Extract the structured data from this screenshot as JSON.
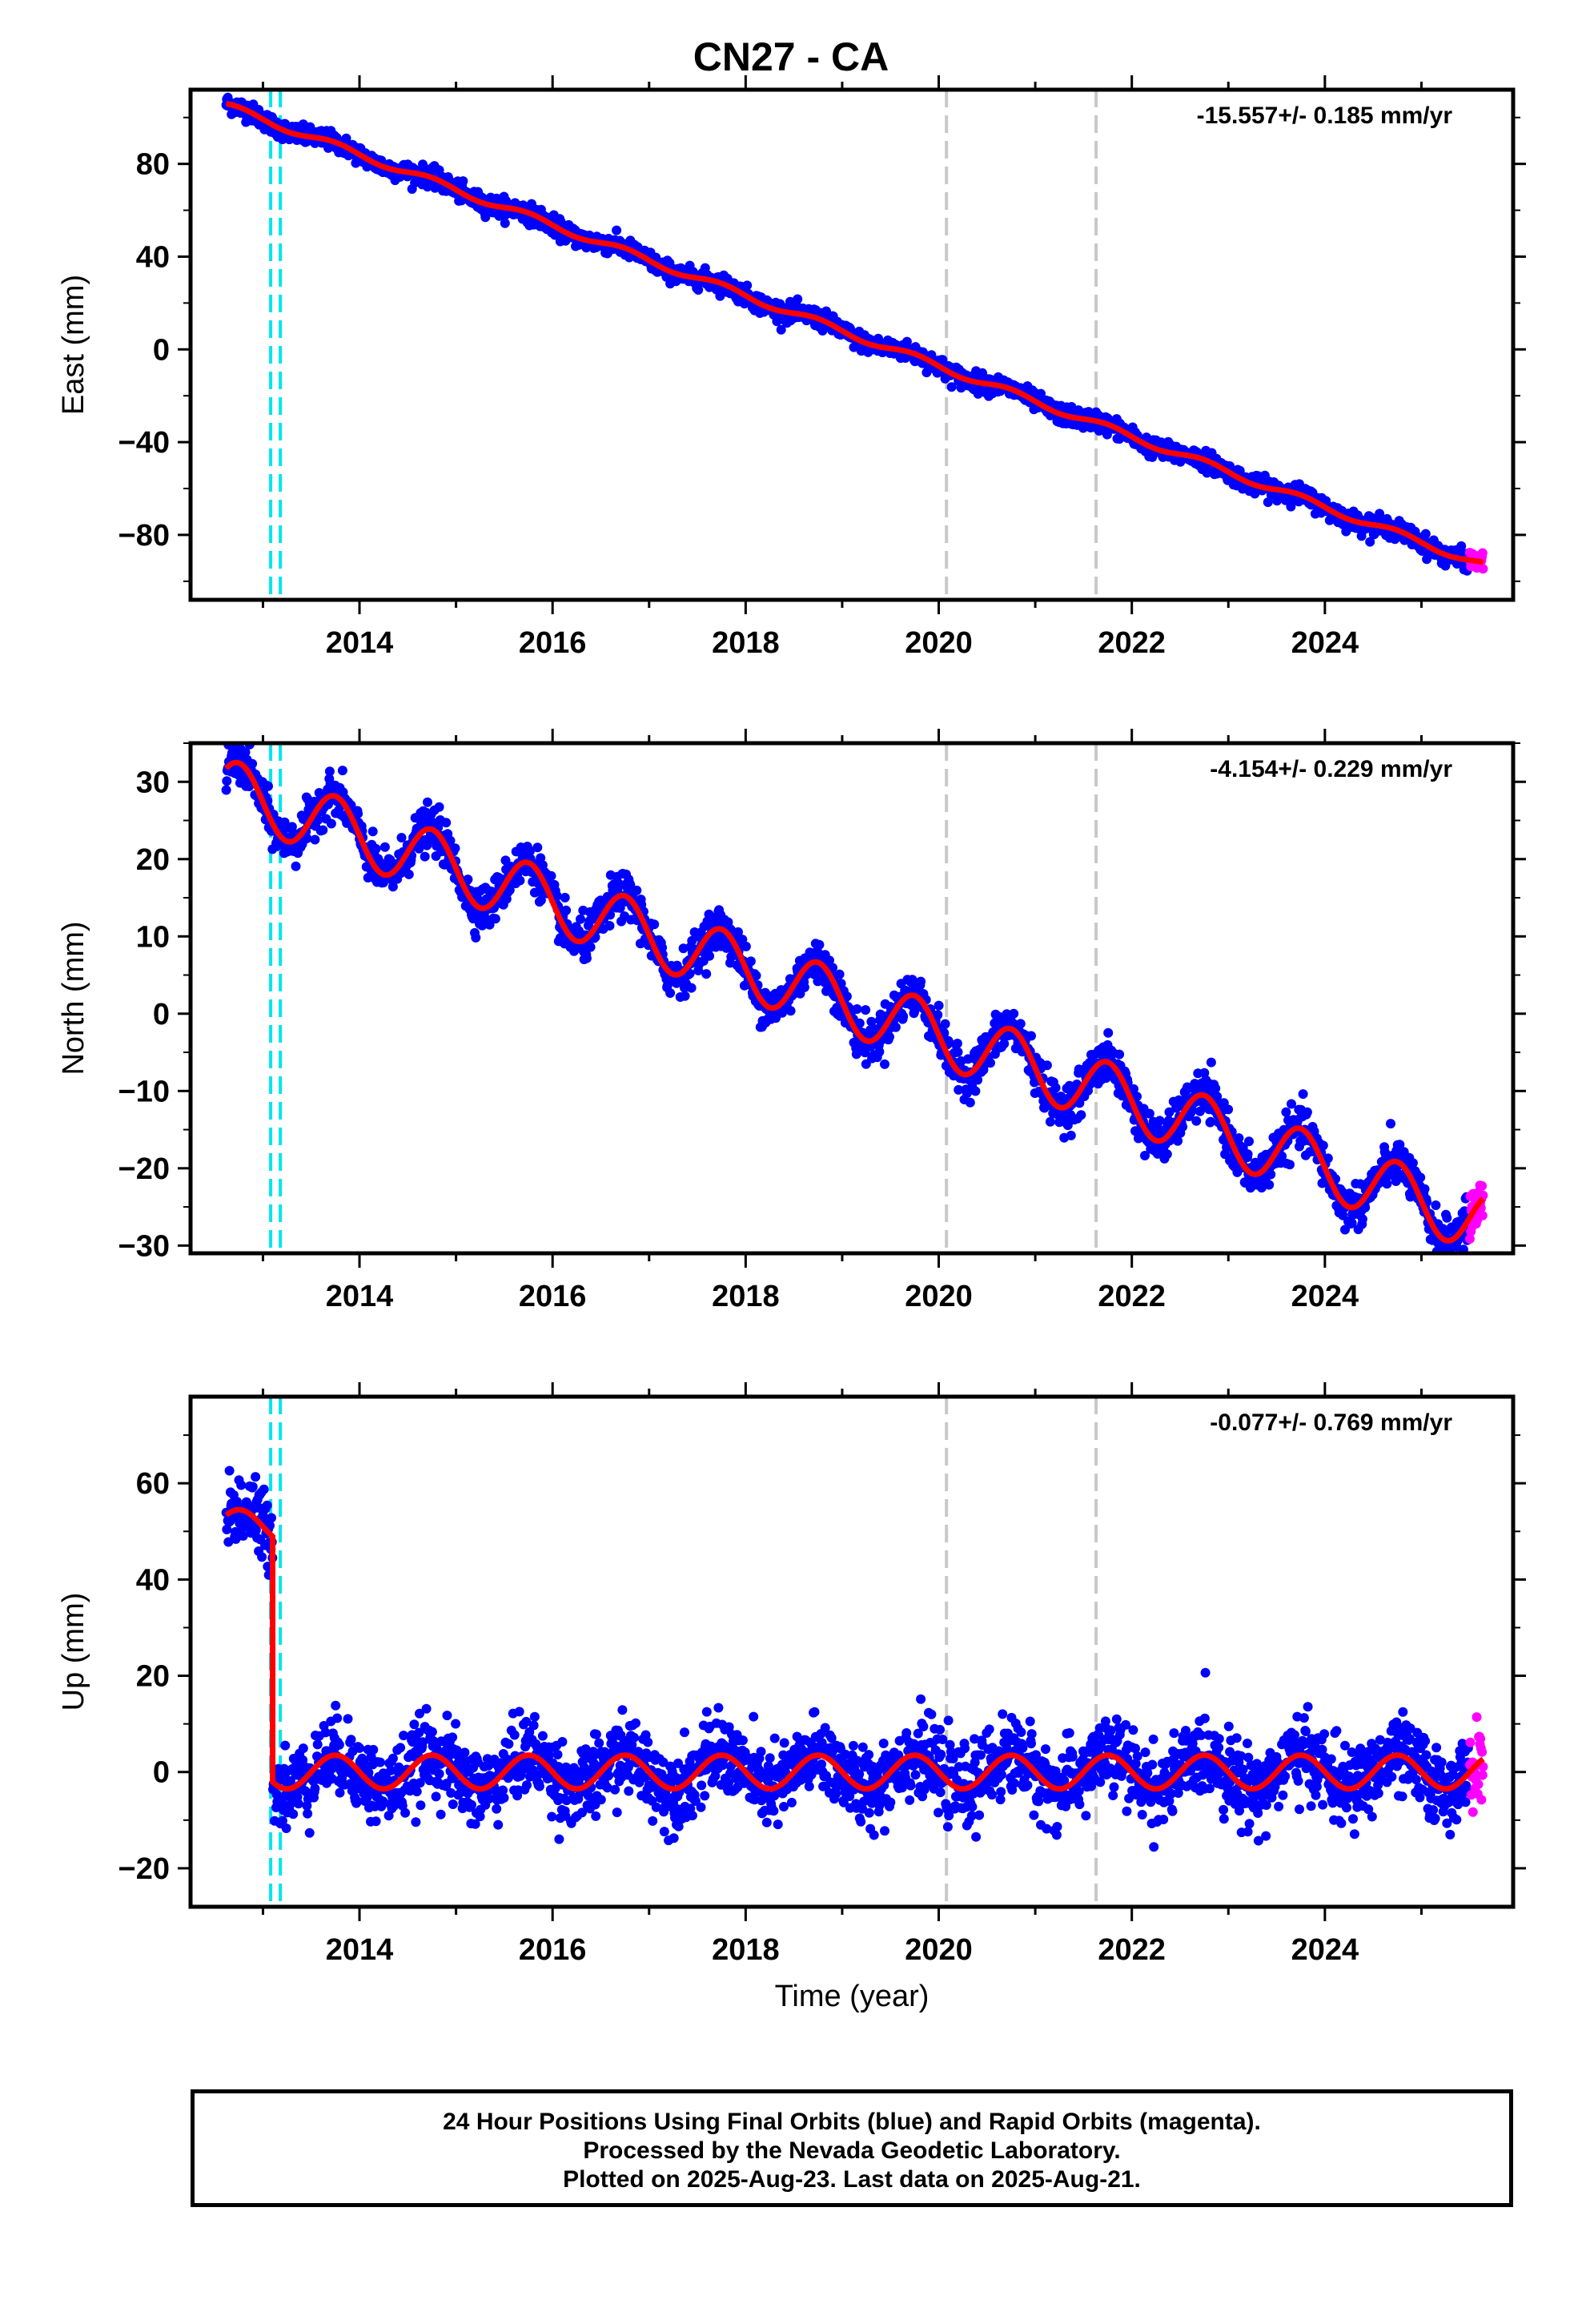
{
  "title": "CN27 - CA",
  "x_tick_labels": [
    "2014",
    "2016",
    "2018",
    "2020",
    "2022",
    "2024"
  ],
  "xlabel": "Time (year)",
  "footer": {
    "line1": "24 Hour Positions Using Final Orbits (blue) and Rapid Orbits (magenta).",
    "line2": "Processed by the Nevada Geodetic Laboratory.",
    "line3": "Plotted on 2025-Aug-23. Last data on 2025-Aug-21."
  },
  "colors": {
    "final_orbits": "#0000ff",
    "rapid_orbits": "#ff00ff",
    "model_fit": "#ff0000",
    "equipment_change_lines": "#00e5ee",
    "event_lines": "#c8c8c8"
  },
  "chart_data": [
    {
      "type": "scatter",
      "component": "east",
      "ylabel": "East (mm)",
      "rate_text": "-15.557+/- 0.185 mm/yr",
      "xlim": [
        2012.25,
        2025.95
      ],
      "ylim": [
        -108,
        112
      ],
      "yticks": [
        -80,
        -40,
        0,
        40,
        80
      ],
      "x_start": 2012.62,
      "x_end": 2025.64,
      "y_start": 105,
      "y_end": -93,
      "annual_amplitude": 1.5,
      "offset": null,
      "noise": 2.0,
      "series": [
        {
          "name": "Final Orbits",
          "color": "#0000ff"
        },
        {
          "name": "Rapid Orbits",
          "color": "#ff00ff",
          "x_from": 2025.5
        },
        {
          "name": "Model Fit",
          "color": "#ff0000"
        }
      ],
      "equipment_change_lines": [
        2013.08,
        2013.18
      ],
      "event_lines": [
        2020.08,
        2021.63
      ]
    },
    {
      "type": "scatter",
      "component": "north",
      "ylabel": "North (mm)",
      "rate_text": "-4.154+/- 0.229 mm/yr",
      "xlim": [
        2012.25,
        2025.95
      ],
      "ylim": [
        -31,
        35
      ],
      "yticks": [
        -30,
        -20,
        -10,
        0,
        10,
        20,
        30
      ],
      "x_start": 2012.62,
      "x_end": 2025.64,
      "y_start": 29,
      "y_end": -27,
      "annual_amplitude": 4.0,
      "offset": null,
      "noise": 1.4,
      "series": [
        {
          "name": "Final Orbits",
          "color": "#0000ff"
        },
        {
          "name": "Rapid Orbits",
          "color": "#ff00ff",
          "x_from": 2025.5
        },
        {
          "name": "Model Fit",
          "color": "#ff0000"
        }
      ],
      "equipment_change_lines": [
        2013.08,
        2013.18
      ],
      "event_lines": [
        2020.08,
        2021.63
      ]
    },
    {
      "type": "scatter",
      "component": "up",
      "ylabel": "Up (mm)",
      "rate_text": "-0.077+/- 0.769 mm/yr",
      "xlim": [
        2012.25,
        2025.95
      ],
      "ylim": [
        -28,
        78
      ],
      "yticks": [
        -20,
        0,
        20,
        40,
        60
      ],
      "x_start": 2012.62,
      "x_end": 2025.64,
      "y_start": 0,
      "y_end": 0,
      "annual_amplitude": 3.5,
      "offset": {
        "x": 2013.1,
        "y_before": 51
      },
      "noise": 4.0,
      "series": [
        {
          "name": "Final Orbits",
          "color": "#0000ff"
        },
        {
          "name": "Rapid Orbits",
          "color": "#ff00ff",
          "x_from": 2025.5
        },
        {
          "name": "Model Fit",
          "color": "#ff0000"
        }
      ],
      "equipment_change_lines": [
        2013.08,
        2013.18
      ],
      "event_lines": [
        2020.08,
        2021.63
      ]
    }
  ]
}
